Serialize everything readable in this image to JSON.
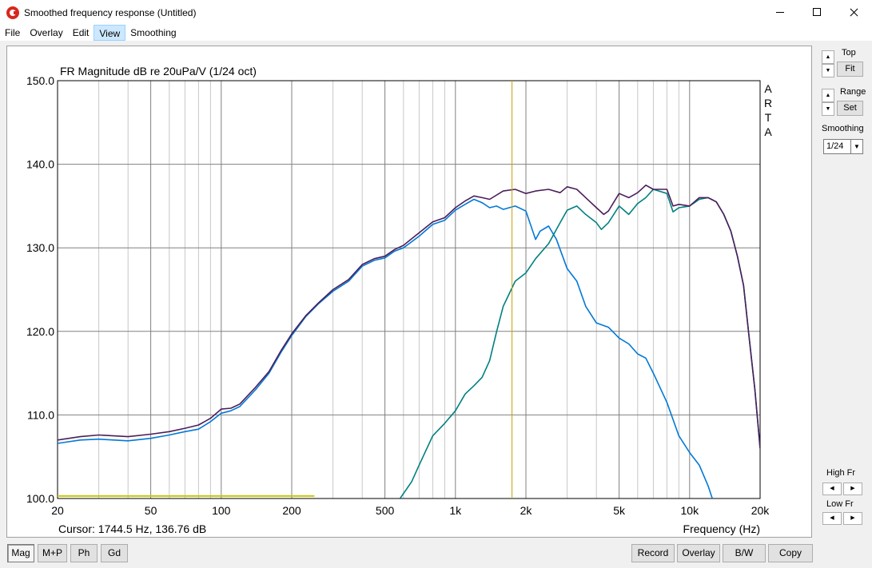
{
  "window": {
    "title": "Smoothed frequency response (Untitled)"
  },
  "menu": {
    "items": [
      "File",
      "Overlay",
      "Edit",
      "View",
      "Smoothing"
    ],
    "active": "View"
  },
  "chart_data": {
    "type": "line",
    "title": "FR Magnitude dB re 20uPa/V (1/24 oct)",
    "watermark": "ARTA",
    "xlabel": "Frequency (Hz)",
    "xscale": "log",
    "xlim": [
      20,
      20000
    ],
    "ylim": [
      100,
      150
    ],
    "x_ticks": [
      20,
      50,
      100,
      200,
      500,
      1000,
      2000,
      5000,
      10000,
      20000
    ],
    "x_tick_labels": [
      "20",
      "50",
      "100",
      "200",
      "500",
      "1k",
      "2k",
      "5k",
      "10k",
      "20k"
    ],
    "y_ticks": [
      100,
      110,
      120,
      130,
      140,
      150
    ],
    "y_tick_labels": [
      "100.0",
      "110.0",
      "120.0",
      "130.0",
      "140.0",
      "150.0"
    ],
    "grid": true,
    "cursor": {
      "x": 1744.5,
      "y": 136.76,
      "label": "Cursor: 1744.5 Hz, 136.76 dB",
      "color": "#c8a000"
    },
    "series": [
      {
        "color": "#0078d7",
        "points": [
          [
            20,
            106.6
          ],
          [
            25,
            107.0
          ],
          [
            30,
            107.1
          ],
          [
            40,
            106.9
          ],
          [
            50,
            107.2
          ],
          [
            60,
            107.6
          ],
          [
            70,
            108.0
          ],
          [
            80,
            108.3
          ],
          [
            90,
            109.2
          ],
          [
            100,
            110.2
          ],
          [
            110,
            110.5
          ],
          [
            120,
            111.0
          ],
          [
            140,
            113.0
          ],
          [
            160,
            115.0
          ],
          [
            180,
            117.5
          ],
          [
            200,
            119.5
          ],
          [
            230,
            121.8
          ],
          [
            260,
            123.3
          ],
          [
            300,
            124.8
          ],
          [
            350,
            126.0
          ],
          [
            400,
            127.8
          ],
          [
            450,
            128.5
          ],
          [
            500,
            128.8
          ],
          [
            550,
            129.6
          ],
          [
            600,
            130.0
          ],
          [
            700,
            131.4
          ],
          [
            800,
            132.8
          ],
          [
            900,
            133.3
          ],
          [
            1000,
            134.5
          ],
          [
            1100,
            135.2
          ],
          [
            1200,
            135.8
          ],
          [
            1300,
            135.4
          ],
          [
            1400,
            134.8
          ],
          [
            1500,
            135.0
          ],
          [
            1600,
            134.6
          ],
          [
            1800,
            135.0
          ],
          [
            2000,
            134.4
          ],
          [
            2200,
            131.0
          ],
          [
            2300,
            132.0
          ],
          [
            2500,
            132.6
          ],
          [
            2700,
            131.0
          ],
          [
            3000,
            127.5
          ],
          [
            3300,
            126.0
          ],
          [
            3600,
            123.0
          ],
          [
            4000,
            121.0
          ],
          [
            4500,
            120.5
          ],
          [
            5000,
            119.2
          ],
          [
            5500,
            118.5
          ],
          [
            6000,
            117.3
          ],
          [
            6500,
            116.8
          ],
          [
            7000,
            115.0
          ],
          [
            8000,
            111.5
          ],
          [
            9000,
            107.5
          ],
          [
            10000,
            105.5
          ],
          [
            11000,
            104.0
          ],
          [
            12000,
            101.5
          ],
          [
            12500,
            100.0
          ]
        ]
      },
      {
        "color": "#008080",
        "points": [
          [
            580,
            100.0
          ],
          [
            650,
            102.0
          ],
          [
            700,
            104.0
          ],
          [
            800,
            107.5
          ],
          [
            900,
            109.0
          ],
          [
            1000,
            110.5
          ],
          [
            1100,
            112.5
          ],
          [
            1200,
            113.5
          ],
          [
            1300,
            114.5
          ],
          [
            1400,
            116.5
          ],
          [
            1500,
            120.0
          ],
          [
            1600,
            123.0
          ],
          [
            1800,
            126.0
          ],
          [
            2000,
            127.0
          ],
          [
            2200,
            128.7
          ],
          [
            2500,
            130.5
          ],
          [
            2800,
            133.0
          ],
          [
            3000,
            134.5
          ],
          [
            3300,
            135.0
          ],
          [
            3600,
            134.0
          ],
          [
            4000,
            133.0
          ],
          [
            4200,
            132.2
          ],
          [
            4500,
            133.0
          ],
          [
            5000,
            135.0
          ],
          [
            5500,
            134.0
          ],
          [
            6000,
            135.3
          ],
          [
            6500,
            136.0
          ],
          [
            7000,
            137.0
          ],
          [
            8000,
            136.5
          ],
          [
            8500,
            134.3
          ],
          [
            9000,
            134.8
          ],
          [
            10000,
            135.0
          ],
          [
            11000,
            135.8
          ],
          [
            12000,
            136.0
          ],
          [
            13000,
            135.5
          ],
          [
            14000,
            134.0
          ],
          [
            15000,
            132.0
          ],
          [
            16000,
            129.0
          ],
          [
            17000,
            125.5
          ],
          [
            18000,
            119.0
          ],
          [
            19000,
            113.0
          ],
          [
            20000,
            106.0
          ]
        ]
      },
      {
        "color": "#4b1e5a",
        "points": [
          [
            20,
            107.0
          ],
          [
            25,
            107.4
          ],
          [
            30,
            107.6
          ],
          [
            40,
            107.4
          ],
          [
            50,
            107.7
          ],
          [
            60,
            108.0
          ],
          [
            70,
            108.4
          ],
          [
            80,
            108.8
          ],
          [
            90,
            109.6
          ],
          [
            100,
            110.7
          ],
          [
            110,
            110.8
          ],
          [
            120,
            111.3
          ],
          [
            140,
            113.3
          ],
          [
            160,
            115.2
          ],
          [
            180,
            117.7
          ],
          [
            200,
            119.7
          ],
          [
            230,
            121.9
          ],
          [
            260,
            123.4
          ],
          [
            300,
            125.0
          ],
          [
            350,
            126.2
          ],
          [
            400,
            128.0
          ],
          [
            450,
            128.7
          ],
          [
            500,
            129.0
          ],
          [
            550,
            129.8
          ],
          [
            600,
            130.3
          ],
          [
            700,
            131.8
          ],
          [
            800,
            133.1
          ],
          [
            900,
            133.6
          ],
          [
            1000,
            134.8
          ],
          [
            1100,
            135.6
          ],
          [
            1200,
            136.2
          ],
          [
            1300,
            136.0
          ],
          [
            1400,
            135.8
          ],
          [
            1600,
            136.8
          ],
          [
            1800,
            137.0
          ],
          [
            2000,
            136.5
          ],
          [
            2200,
            136.8
          ],
          [
            2500,
            137.0
          ],
          [
            2800,
            136.6
          ],
          [
            3000,
            137.3
          ],
          [
            3300,
            137.0
          ],
          [
            3600,
            136.0
          ],
          [
            4000,
            134.8
          ],
          [
            4300,
            134.0
          ],
          [
            4500,
            134.4
          ],
          [
            5000,
            136.5
          ],
          [
            5500,
            136.0
          ],
          [
            6000,
            136.6
          ],
          [
            6500,
            137.5
          ],
          [
            7000,
            137.0
          ],
          [
            8000,
            137.0
          ],
          [
            8500,
            135.0
          ],
          [
            9000,
            135.2
          ],
          [
            10000,
            135.0
          ],
          [
            11000,
            136.0
          ],
          [
            12000,
            136.0
          ],
          [
            13000,
            135.5
          ],
          [
            14000,
            134.0
          ],
          [
            15000,
            132.0
          ],
          [
            16000,
            129.0
          ],
          [
            17000,
            125.5
          ],
          [
            18000,
            119.0
          ],
          [
            19000,
            113.0
          ],
          [
            20000,
            106.0
          ]
        ]
      }
    ],
    "marker_line": {
      "x_start": 20,
      "x_end": 250,
      "y": 100.3,
      "color": "#c8c800"
    }
  },
  "side": {
    "top_label": "Top",
    "fit_label": "Fit",
    "range_label": "Range",
    "set_label": "Set",
    "smoothing_label": "Smoothing",
    "smoothing_value": "1/24",
    "high_fr_label": "High Fr",
    "low_fr_label": "Low Fr"
  },
  "bottom": {
    "mag": "Mag",
    "mp": "M+P",
    "ph": "Ph",
    "gd": "Gd",
    "record": "Record",
    "overlay": "Overlay",
    "bw": "B/W",
    "copy": "Copy"
  }
}
